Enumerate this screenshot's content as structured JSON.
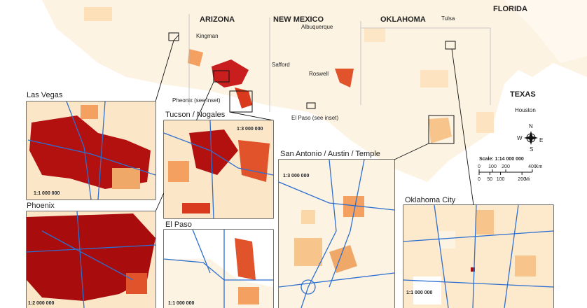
{
  "map": {
    "states": [
      "ARIZONA",
      "NEW MEXICO",
      "OKLAHOMA",
      "FLORIDA",
      "TEXAS"
    ],
    "cities": [
      "Kingman",
      "Albuquerque",
      "Tulsa",
      "Safford",
      "Roswell",
      "Pheonix (see inset)",
      "El Paso (see inset)",
      "Houston"
    ],
    "insets": [
      {
        "title": "Las Vegas",
        "scale": "1:1 000 000"
      },
      {
        "title": "Tucson / Nogales",
        "scale": "1:3 000 000"
      },
      {
        "title": "San Antonio / Austin / Temple",
        "scale": "1:3 000 000"
      },
      {
        "title": "Phoenix",
        "scale": "1:2 000 000"
      },
      {
        "title": "El Paso",
        "scale": "1:1 000 000"
      },
      {
        "title": "Oklahoma City",
        "scale": "1:1 000 000"
      }
    ],
    "scale_bar": {
      "label": "Scale: 1:14 000 000",
      "km": [
        0,
        100,
        200,
        400
      ],
      "km_unit": "Km",
      "mi": [
        0,
        50,
        100,
        200
      ],
      "mi_unit": "Mi"
    },
    "compass": {
      "n": "N",
      "s": "S",
      "e": "E",
      "w": "W"
    }
  }
}
